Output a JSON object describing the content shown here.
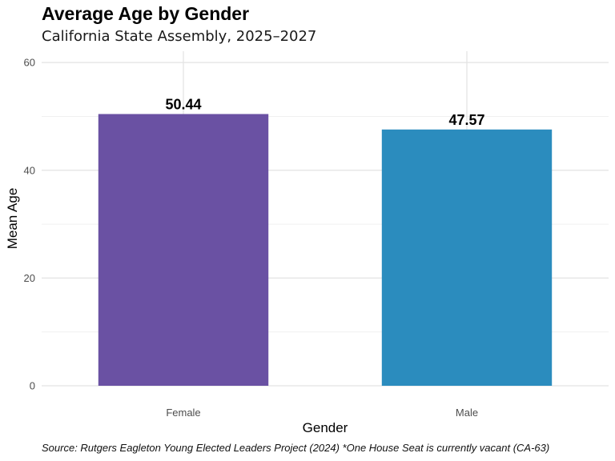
{
  "chart_data": {
    "type": "bar",
    "title": "Average Age by Gender",
    "subtitle": "California State Assembly, 2025–2027",
    "xlabel": "Gender",
    "ylabel": "Mean Age",
    "categories": [
      "Female",
      "Male"
    ],
    "values": [
      50.44,
      47.57
    ],
    "value_labels": [
      "50.44",
      "47.57"
    ],
    "colors": [
      "#6a51a3",
      "#2b8cbe"
    ],
    "ylim": [
      0,
      60
    ],
    "yticks": [
      0,
      20,
      40,
      60
    ],
    "grid": true,
    "legend": "none",
    "caption": "Source: Rutgers Eagleton Young Elected Leaders Project (2024) *One House Seat is currently vacant (CA-63)"
  }
}
